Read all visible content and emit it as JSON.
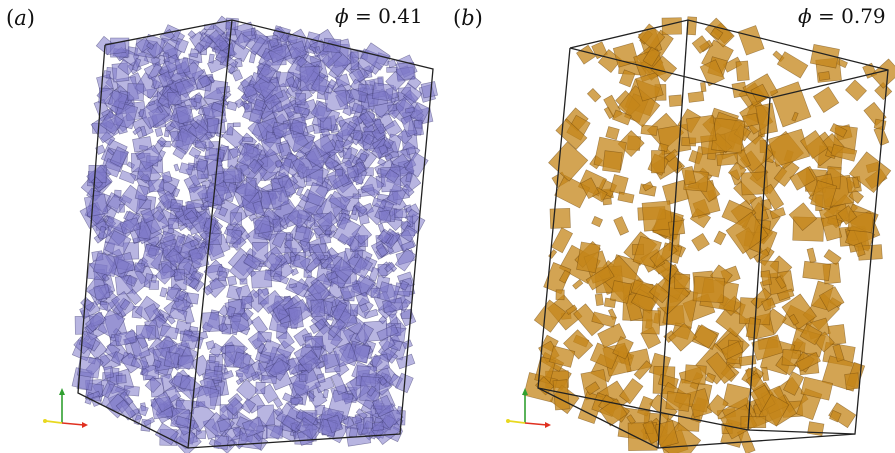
{
  "panels": [
    {
      "id": "a",
      "label_open": "(",
      "label_letter": "a",
      "label_close": ")",
      "phi_symbol": "ϕ",
      "phi_value": " = 0.41",
      "fill_color": "#7d78c8",
      "edge_color": "#3a376e"
    },
    {
      "id": "b",
      "label_open": "(",
      "label_letter": "b",
      "label_close": ")",
      "phi_symbol": "ϕ",
      "phi_value": " = 0.79",
      "fill_color": "#c4861a",
      "edge_color": "#6b430a"
    }
  ],
  "axes_colors": {
    "x": "#e03020",
    "y": "#30a030",
    "z": "#e8d820"
  }
}
